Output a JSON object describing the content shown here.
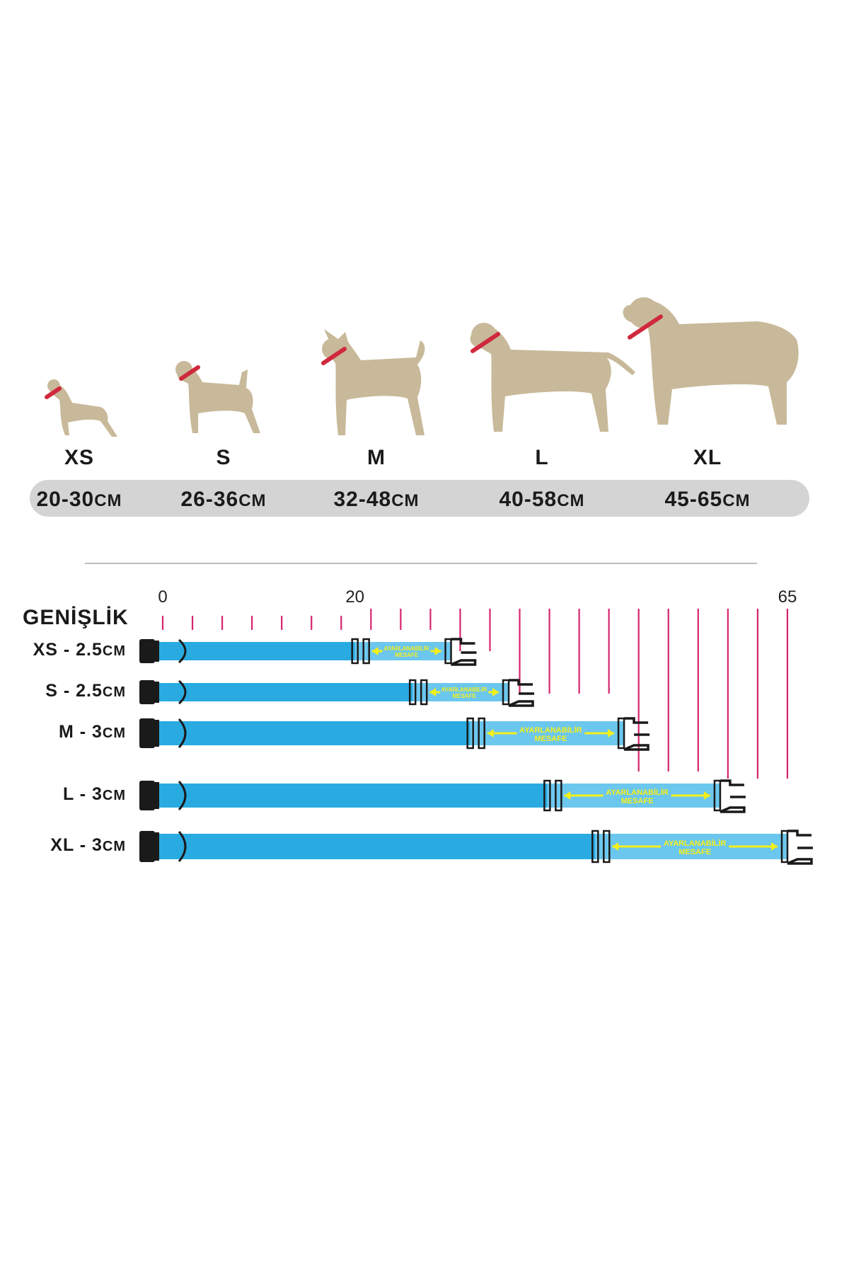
{
  "sizes": [
    {
      "label": "XS",
      "range": "20-30",
      "unit": "CM"
    },
    {
      "label": "S",
      "range": "26-36",
      "unit": "CM"
    },
    {
      "label": "M",
      "range": "32-48",
      "unit": "CM"
    },
    {
      "label": "L",
      "range": "40-58",
      "unit": "CM"
    },
    {
      "label": "XL",
      "range": "45-65",
      "unit": "CM"
    }
  ],
  "width_title": "GENİŞLİK",
  "scale": {
    "ticks": [
      "0",
      "20",
      "65"
    ],
    "min": 0,
    "max": 65
  },
  "collars": [
    {
      "label": "XS - 2.5",
      "unit": "CM",
      "min_cm": 20,
      "max_cm": 30,
      "band": "AYARLANABİLİR",
      "band2": "MESAFE"
    },
    {
      "label": "S - 2.5",
      "unit": "CM",
      "min_cm": 26,
      "max_cm": 36,
      "band": "AYARLANABİLİR",
      "band2": "MESAFE"
    },
    {
      "label": "M - 3",
      "unit": "CM",
      "min_cm": 32,
      "max_cm": 48,
      "band": "AYARLANABİLİR",
      "band2": "MESAFE"
    },
    {
      "label": "L - 3",
      "unit": "CM",
      "min_cm": 40,
      "max_cm": 58,
      "band": "AYARLANABİLİR",
      "band2": "MESAFE"
    },
    {
      "label": "XL - 3",
      "unit": "CM",
      "min_cm": 45,
      "max_cm": 65,
      "band": "AYARLANABİLİR",
      "band2": "MESAFE"
    }
  ],
  "colors": {
    "dog": "#c8b99a",
    "collar": "#d0283c",
    "strap": "#29abe2",
    "strap_light": "#6cc7ee",
    "arrow": "#f4ef1a",
    "tick": "#d6246e",
    "buckle": "#1a1a1a"
  }
}
